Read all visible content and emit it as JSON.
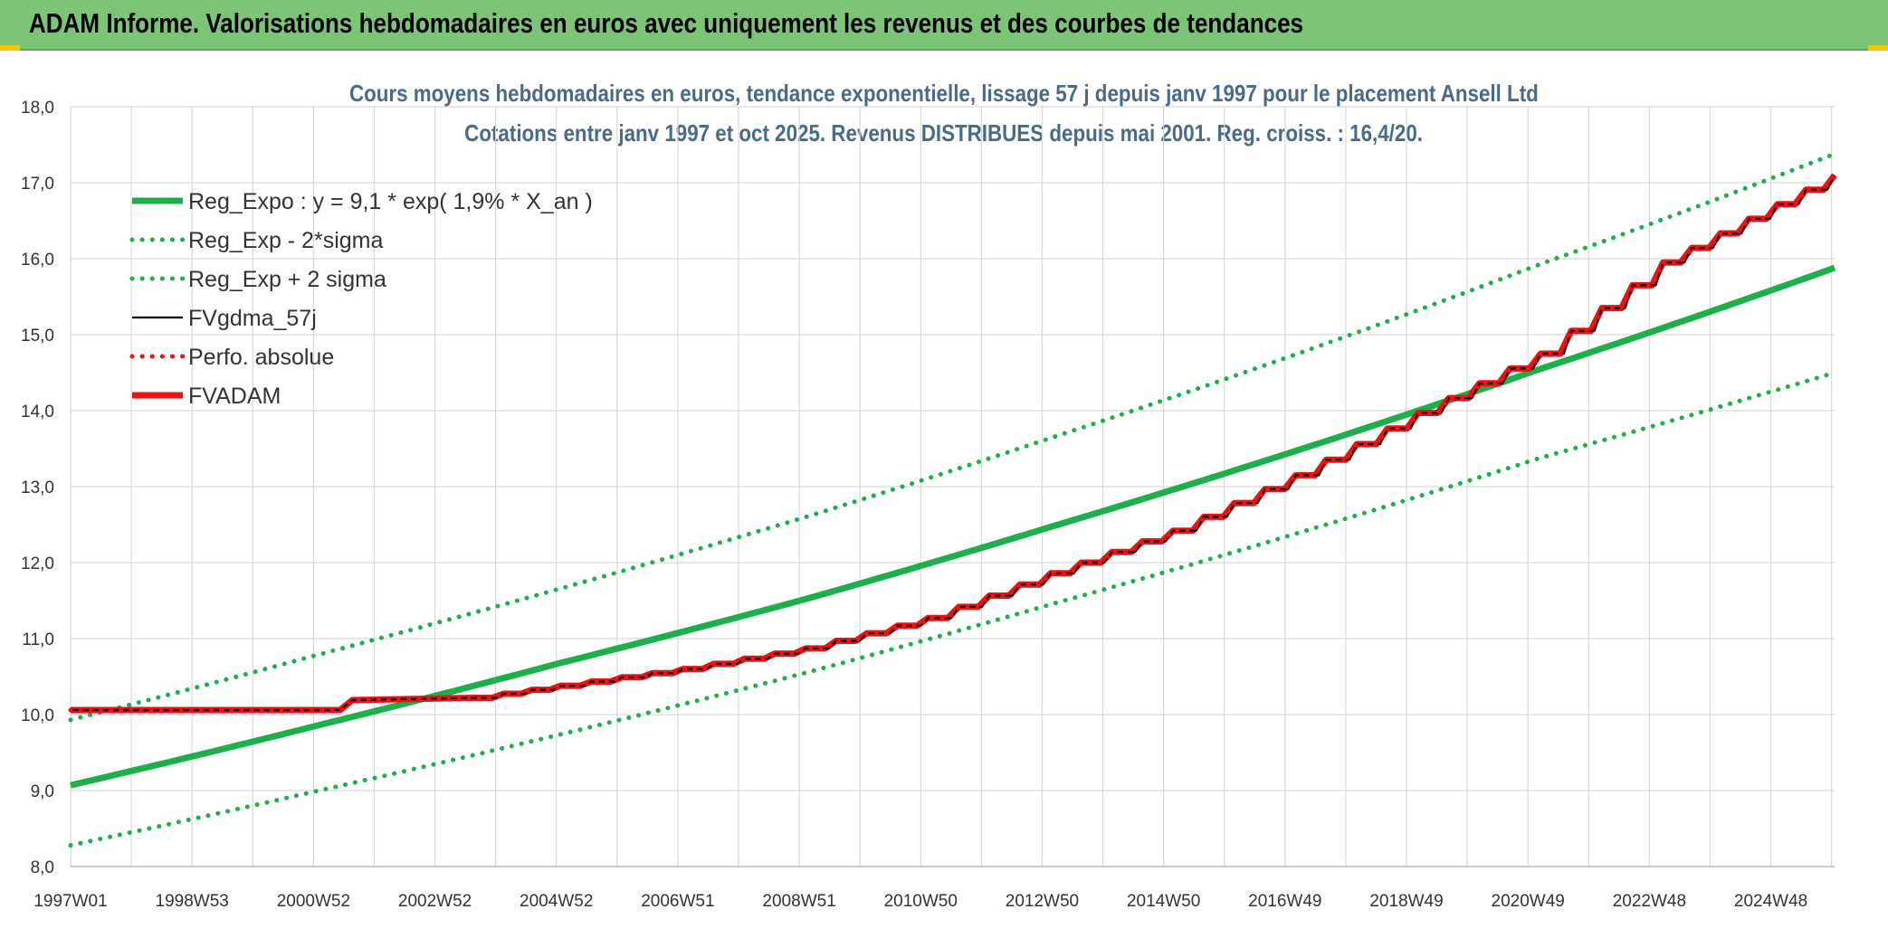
{
  "header": {
    "banner_title": "ADAM Informe. Valorisations hebdomadaires en euros avec uniquement les revenus et des courbes de tendances"
  },
  "chart_data": {
    "type": "line",
    "title_line1": "Cours moyens hebdomadaires en euros, tendance exponentielle, lissage 57 j depuis janv 1997 pour le placement Ansell Ltd",
    "title_line2": "Cotations entre janv 1997 et oct 2025. Revenus DISTRIBUES depuis mai 2001. Reg. croiss. : 16,4/20.",
    "ylim": [
      8.0,
      18.0
    ],
    "y_ticks": [
      "8,0",
      "9,0",
      "10,0",
      "11,0",
      "12,0",
      "13,0",
      "14,0",
      "15,0",
      "16,0",
      "17,0",
      "18,0"
    ],
    "x_ticks": [
      "1997W01",
      "1998W53",
      "2000W52",
      "2002W52",
      "2004W52",
      "2006W51",
      "2008W51",
      "2010W50",
      "2012W50",
      "2014W50",
      "2016W49",
      "2018W49",
      "2020W49",
      "2022W48",
      "2024W48"
    ],
    "xlim_years": [
      1997.0,
      2025.8
    ],
    "grid": true,
    "legend_position": "top-left",
    "series": [
      {
        "name": "Reg_Expo : y = 9,1 * exp( 1,9% *  X_an )",
        "style": "solid-thick",
        "color": "#1db04a",
        "x": [
          1997.0,
          2001.0,
          2005.0,
          2009.0,
          2013.0,
          2017.0,
          2021.0,
          2025.8
        ],
        "y": [
          9.07,
          9.85,
          10.68,
          11.52,
          12.47,
          13.47,
          14.55,
          15.88
        ]
      },
      {
        "name": "Reg_Exp - 2*sigma",
        "style": "dotted",
        "color": "#1db04a",
        "x": [
          1997.0,
          2001.0,
          2005.0,
          2009.0,
          2013.0,
          2017.0,
          2021.0,
          2025.8
        ],
        "y": [
          8.28,
          8.99,
          9.74,
          10.55,
          11.45,
          12.38,
          13.38,
          14.5
        ]
      },
      {
        "name": "Reg_Exp + 2 sigma",
        "style": "dotted",
        "color": "#1db04a",
        "x": [
          1997.0,
          2001.0,
          2005.0,
          2009.0,
          2013.0,
          2017.0,
          2021.0,
          2025.8
        ],
        "y": [
          9.93,
          10.78,
          11.66,
          12.6,
          13.64,
          14.74,
          15.93,
          17.38
        ]
      },
      {
        "name": "FVgdma_57j",
        "style": "solid-thin",
        "color": "#000000",
        "x": [
          1997.0,
          2001.4,
          2001.6,
          2003.6,
          2005.0,
          2007.0,
          2009.0,
          2011.0,
          2013.0,
          2015.0,
          2017.0,
          2019.0,
          2021.0,
          2023.0,
          2025.8
        ],
        "y": [
          10.06,
          10.06,
          10.19,
          10.22,
          10.38,
          10.6,
          10.87,
          11.27,
          11.86,
          12.42,
          13.15,
          13.97,
          14.75,
          15.95,
          17.1
        ]
      },
      {
        "name": "Perfo. absolue",
        "style": "dotted",
        "color": "#ee1111",
        "x": [
          1997.0,
          2001.4,
          2001.6,
          2003.6,
          2005.0,
          2007.0,
          2009.0,
          2011.0,
          2013.0,
          2015.0,
          2017.0,
          2019.0,
          2021.0,
          2023.0,
          2025.8
        ],
        "y": [
          10.06,
          10.06,
          10.19,
          10.22,
          10.38,
          10.6,
          10.87,
          11.27,
          11.86,
          12.42,
          13.15,
          13.97,
          14.75,
          15.95,
          17.1
        ]
      },
      {
        "name": "FVADAM",
        "style": "solid-thick",
        "color": "#ee1111",
        "x": [
          1997.0,
          2001.4,
          2001.6,
          2003.6,
          2005.0,
          2007.0,
          2009.0,
          2011.0,
          2013.0,
          2015.0,
          2017.0,
          2019.0,
          2021.0,
          2023.0,
          2025.8
        ],
        "y": [
          10.06,
          10.06,
          10.19,
          10.22,
          10.38,
          10.6,
          10.87,
          11.27,
          11.86,
          12.42,
          13.15,
          13.97,
          14.75,
          15.95,
          17.1
        ]
      }
    ]
  }
}
